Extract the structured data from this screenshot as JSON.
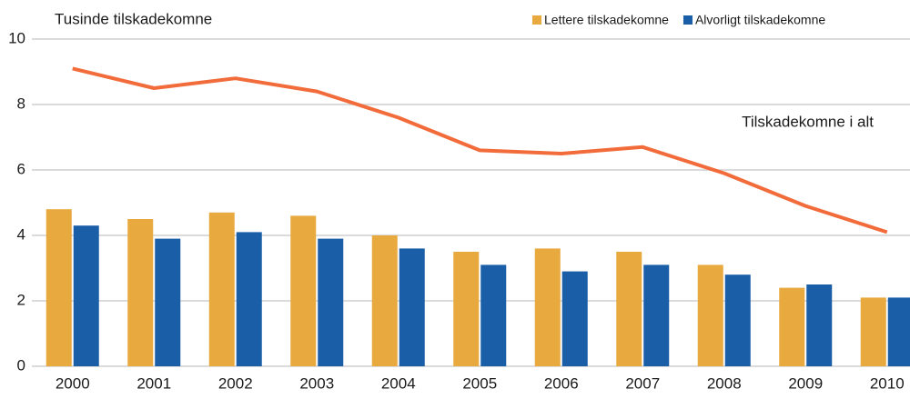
{
  "chart_data": {
    "type": "bar_line",
    "title": "Tusinde tilskadekomne",
    "categories": [
      "2000",
      "2001",
      "2002",
      "2003",
      "2004",
      "2005",
      "2006",
      "2007",
      "2008",
      "2009",
      "2010"
    ],
    "series": [
      {
        "name": "Lettere tilskadekomne",
        "type": "bar",
        "color": "#e8a93f",
        "values": [
          4.8,
          4.5,
          4.7,
          4.6,
          4.0,
          3.5,
          3.6,
          3.5,
          3.1,
          2.4,
          2.1
        ]
      },
      {
        "name": "Alvorligt tilskadekomne",
        "type": "bar",
        "color": "#1a5ea8",
        "values": [
          4.3,
          3.9,
          4.1,
          3.9,
          3.6,
          3.1,
          2.9,
          3.1,
          2.8,
          2.5,
          2.1
        ]
      },
      {
        "name": "Tilskadekomne i alt",
        "type": "line",
        "color": "#f26b3a",
        "values": [
          9.1,
          8.5,
          8.8,
          8.4,
          7.6,
          6.6,
          6.5,
          6.7,
          5.9,
          4.9,
          4.1
        ]
      }
    ],
    "ylim": [
      0,
      10
    ],
    "yticks": [
      0,
      2,
      4,
      6,
      8,
      10
    ],
    "grid": true,
    "legend": "top-right"
  }
}
